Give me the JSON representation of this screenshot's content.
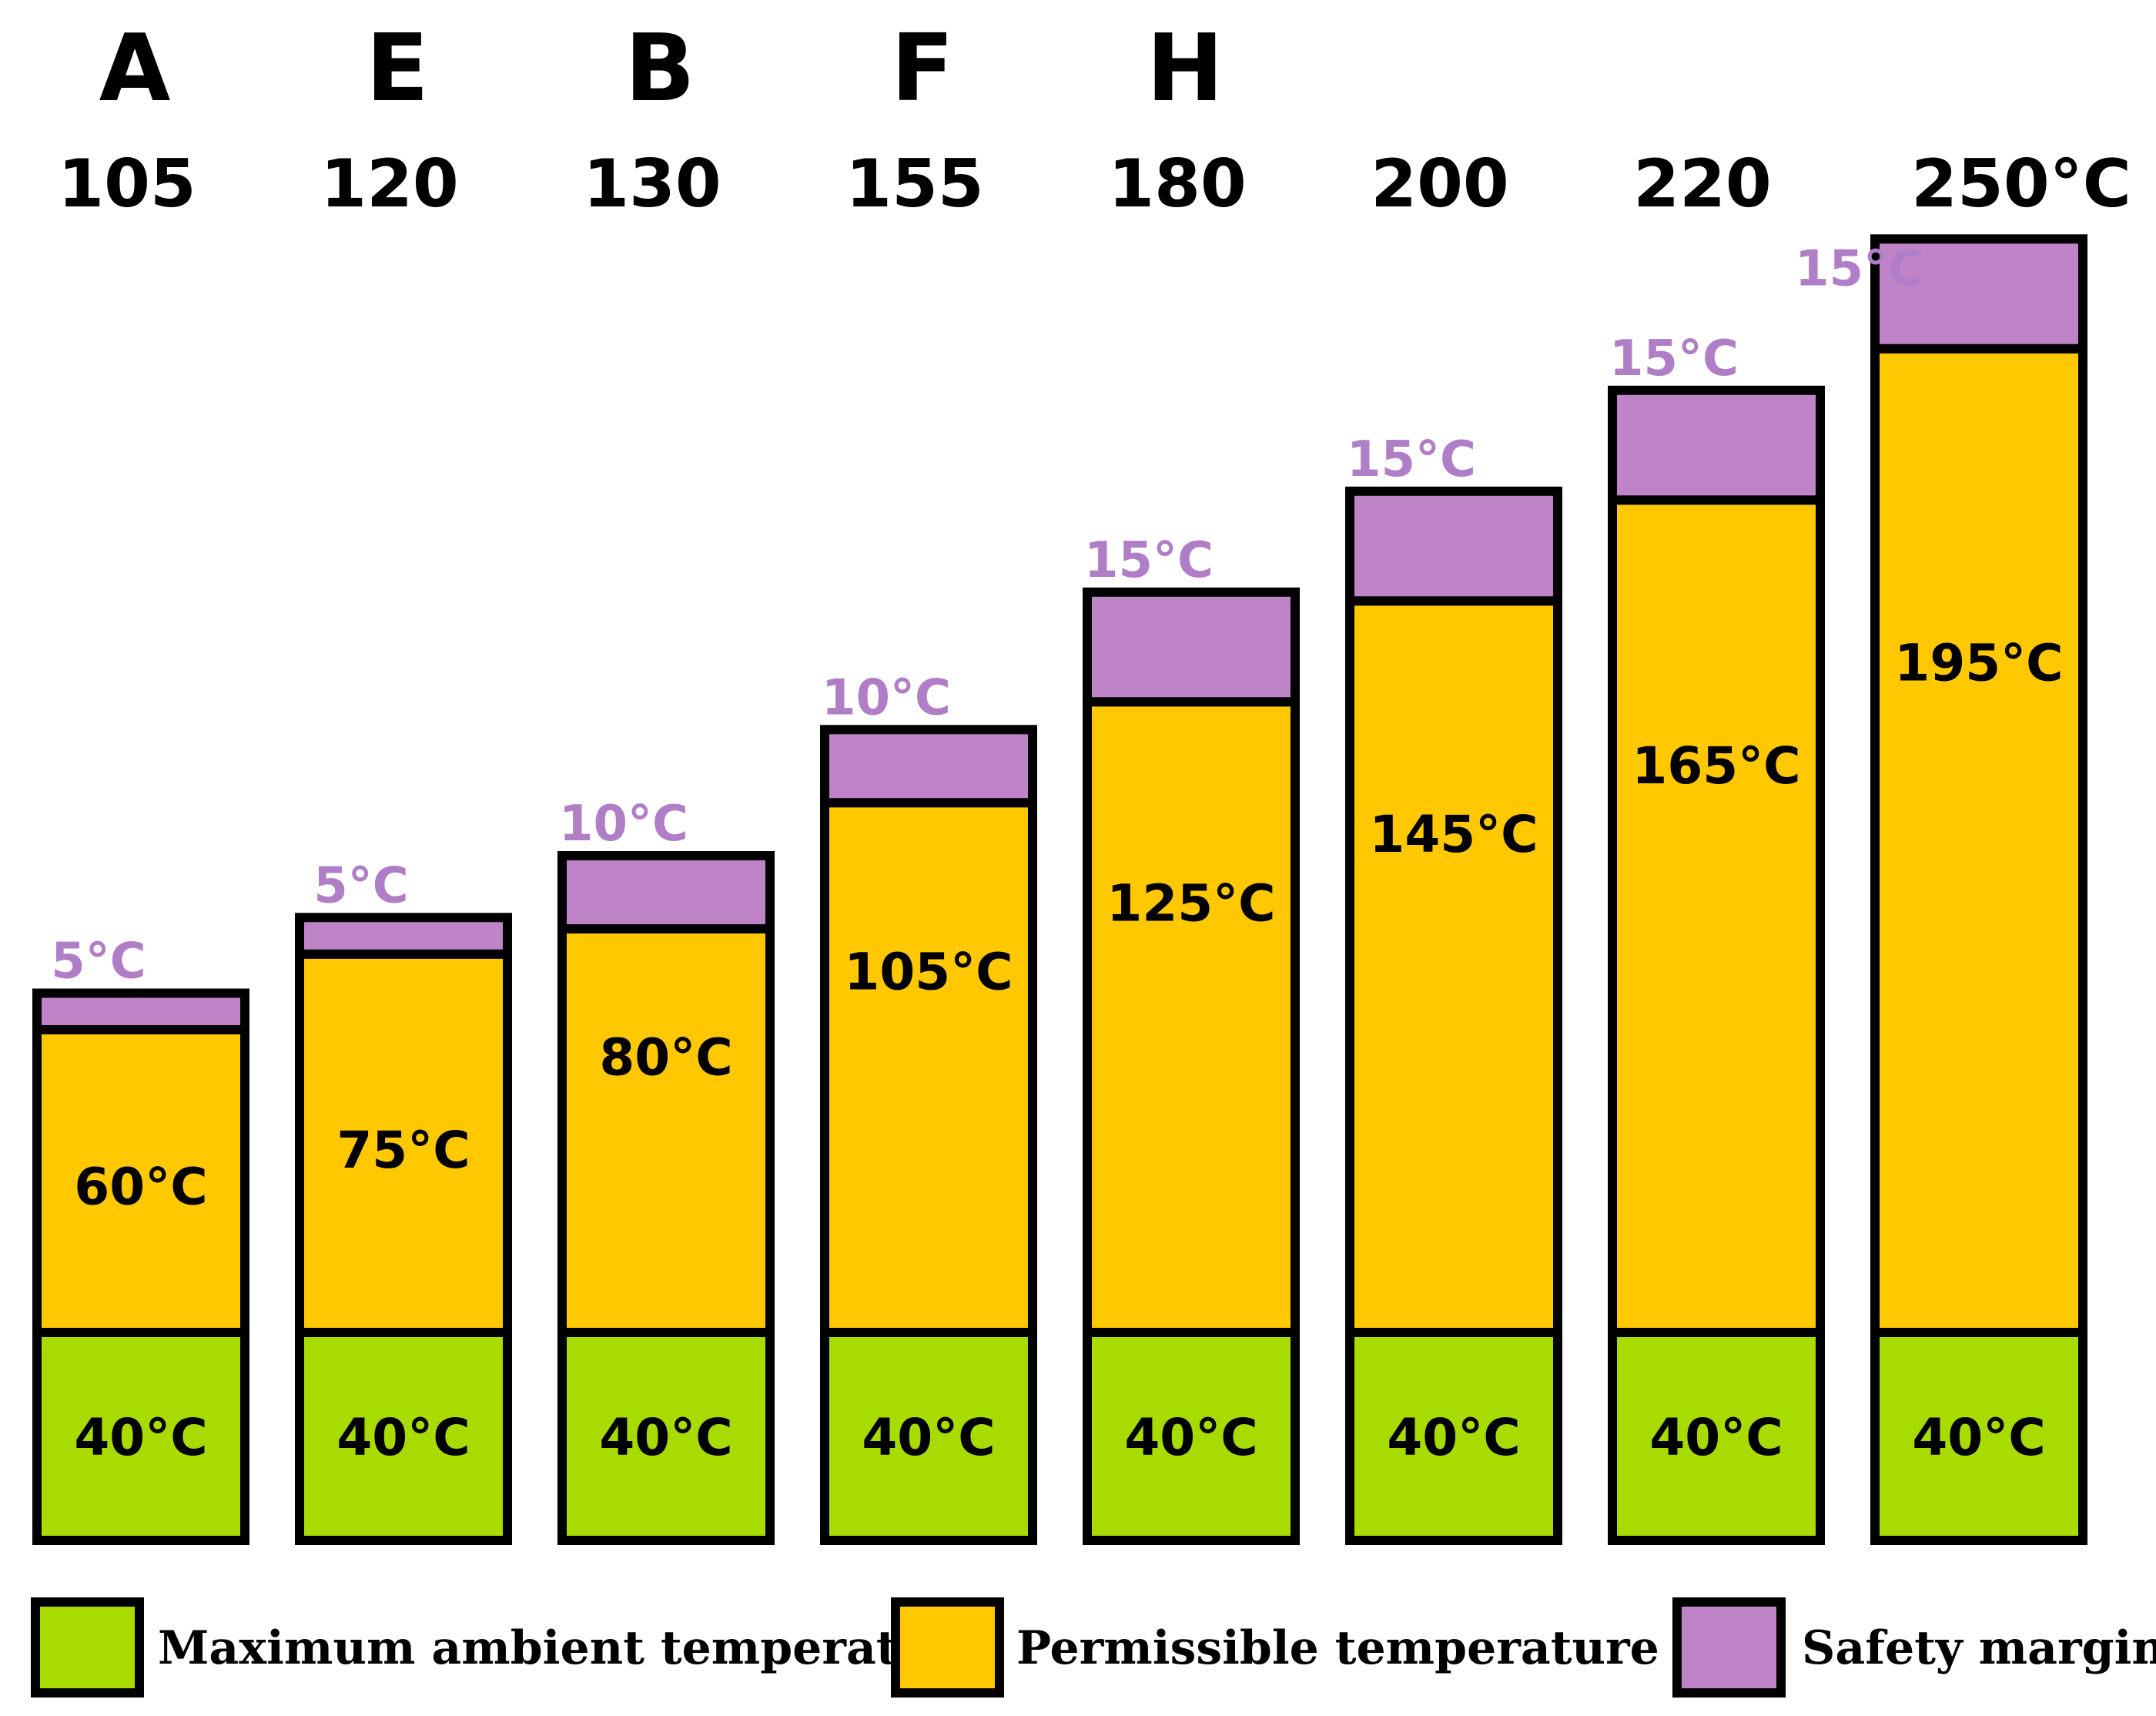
{
  "chart_data": {
    "type": "bar",
    "stacked": true,
    "categories": [
      "105",
      "120",
      "130",
      "155",
      "180",
      "200",
      "220",
      "250°C"
    ],
    "class_letters": [
      "A",
      "E",
      "B",
      "F",
      "H",
      "",
      "",
      ""
    ],
    "series": [
      {
        "name": "Maximum ambient temperature",
        "values": [
          40,
          40,
          40,
          40,
          40,
          40,
          40,
          40
        ],
        "labels": [
          "40°C",
          "40°C",
          "40°C",
          "40°C",
          "40°C",
          "40°C",
          "40°C",
          "40°C"
        ]
      },
      {
        "name": "Permissible temperature rise",
        "values": [
          60,
          75,
          80,
          105,
          125,
          145,
          165,
          195
        ],
        "labels": [
          "60°C",
          "75°C",
          "80°C",
          "105°C",
          "125°C",
          "145°C",
          "165°C",
          "195°C"
        ]
      },
      {
        "name": "Safety margin",
        "values": [
          5,
          5,
          10,
          10,
          15,
          15,
          15,
          15
        ],
        "labels": [
          "5°C",
          "5°C",
          "10°C",
          "10°C",
          "15°C",
          "15°C",
          "15°C",
          "15°C"
        ]
      }
    ],
    "colors": {
      "ambient": "#a8dc00",
      "rise": "#ffc800",
      "margin": "#bf83c8",
      "margin_text": "#b07ec6",
      "stroke": "#000000"
    },
    "ylim": [
      0,
      250
    ],
    "legend": [
      "Maximum ambient temperature",
      "Permissible temperature rise",
      "Safety margin"
    ]
  }
}
